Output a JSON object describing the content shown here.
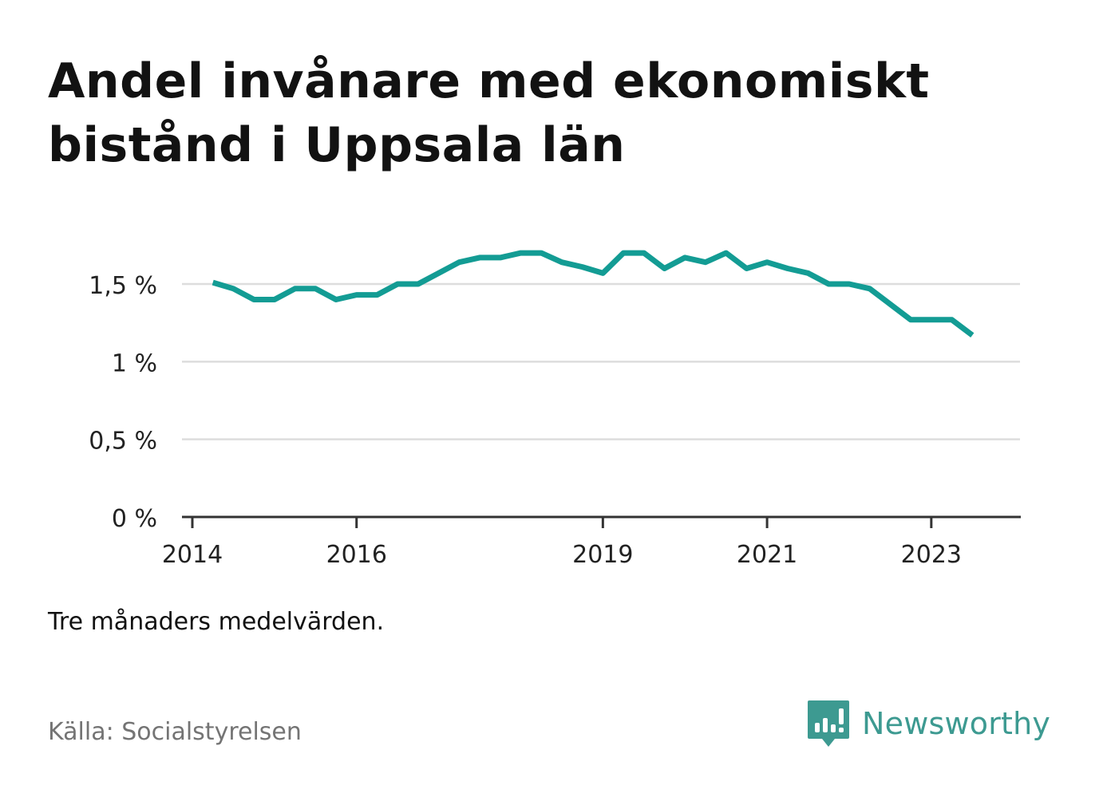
{
  "title": "Andel invånare med ekonomiskt bistånd i Uppsala län",
  "note": "Tre månaders medelvärden.",
  "source": "Källa: Socialstyrelsen",
  "brand": {
    "name": "Newsworthy",
    "icon": "chart-speech-bubble-icon",
    "color": "#3d9a91"
  },
  "colors": {
    "line": "#139c94",
    "grid": "#dddddd",
    "axis": "#333333"
  },
  "chart_data": {
    "type": "line",
    "title": "Andel invånare med ekonomiskt bistånd i Uppsala län",
    "xlabel": "",
    "ylabel": "",
    "ylim": [
      0,
      1.8
    ],
    "grid": true,
    "y_ticks": [
      {
        "value": 0,
        "label": "0 %"
      },
      {
        "value": 0.5,
        "label": "0,5 %"
      },
      {
        "value": 1.0,
        "label": "1 %"
      },
      {
        "value": 1.5,
        "label": "1,5 %"
      }
    ],
    "x_ticks": [
      {
        "value": 2014.0,
        "label": "2014"
      },
      {
        "value": 2016.0,
        "label": "2016"
      },
      {
        "value": 2019.0,
        "label": "2019"
      },
      {
        "value": 2021.0,
        "label": "2021"
      },
      {
        "value": 2023.0,
        "label": "2023"
      }
    ],
    "series": [
      {
        "x": [
          2014.25,
          2014.5,
          2014.75,
          2015.0,
          2015.25,
          2015.5,
          2015.75,
          2016.0,
          2016.25,
          2016.5,
          2016.75,
          2017.0,
          2017.25,
          2017.5,
          2017.75,
          2018.0,
          2018.25,
          2018.5,
          2018.75,
          2019.0,
          2019.25,
          2019.5,
          2019.75,
          2020.0,
          2020.25,
          2020.5,
          2020.75,
          2021.0,
          2021.25,
          2021.5,
          2021.75,
          2022.0,
          2022.25,
          2022.5,
          2022.75,
          2023.0,
          2023.25,
          2023.5
        ],
        "values": [
          1.51,
          1.47,
          1.4,
          1.4,
          1.47,
          1.47,
          1.4,
          1.43,
          1.43,
          1.5,
          1.5,
          1.57,
          1.64,
          1.67,
          1.67,
          1.7,
          1.7,
          1.64,
          1.61,
          1.57,
          1.7,
          1.7,
          1.6,
          1.67,
          1.64,
          1.7,
          1.6,
          1.64,
          1.6,
          1.57,
          1.5,
          1.5,
          1.47,
          1.37,
          1.27,
          1.27,
          1.27,
          1.17
        ]
      }
    ]
  }
}
